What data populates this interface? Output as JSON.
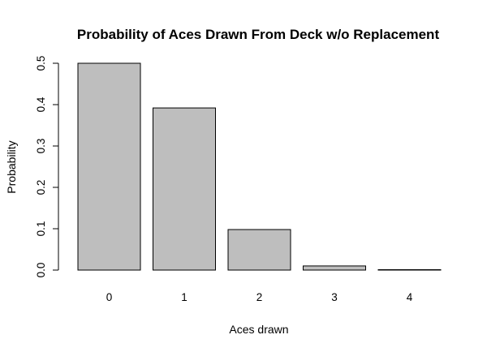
{
  "chart_data": {
    "type": "bar",
    "title": "Probability of Aces Drawn From Deck w/o Replacement",
    "xlabel": "Aces drawn",
    "ylabel": "Probability",
    "categories": [
      "0",
      "1",
      "2",
      "3",
      "4"
    ],
    "values": [
      0.5,
      0.392,
      0.098,
      0.01,
      0.0003
    ],
    "ylim": [
      0,
      0.5
    ],
    "yticks": [
      "0.0",
      "0.1",
      "0.2",
      "0.3",
      "0.4",
      "0.5"
    ],
    "grid": false,
    "bar_color": "#bebebe",
    "border_color": "#000000"
  }
}
